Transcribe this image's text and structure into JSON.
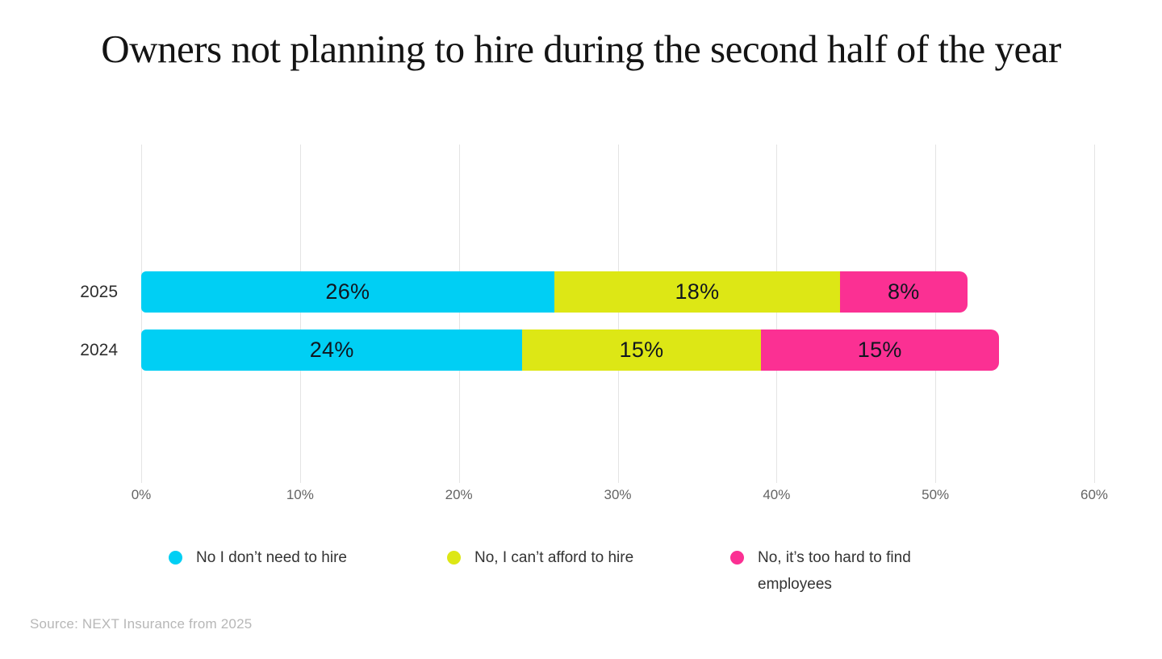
{
  "source_note": "Source: NEXT Insurance from 2025",
  "colors": {
    "title_text": "#141414",
    "bar_label_text": "#10161f",
    "axis_tick_text": "#646464",
    "category_label_text": "#2e2e2e",
    "legend_text": "#333333",
    "source_text": "#b7b7b7",
    "gridline": "#e4e4e4",
    "background": "#ffffff"
  },
  "chart_data": {
    "type": "bar",
    "orientation": "horizontal",
    "stacked": true,
    "title": "Owners not planning to hire during the second half of the year",
    "categories": [
      "2025",
      "2024"
    ],
    "series": [
      {
        "name": "No I don’t need to hire",
        "color": "#00CFF4",
        "values": [
          26,
          24
        ]
      },
      {
        "name": "No, I can’t afford to hire",
        "color": "#DDE715",
        "values": [
          18,
          15
        ]
      },
      {
        "name": "No, it’s too hard to find employees",
        "color": "#FB3093",
        "values": [
          8,
          15
        ]
      }
    ],
    "data_labels": [
      [
        "26%",
        "18%",
        "8%"
      ],
      [
        "24%",
        "15%",
        "15%"
      ]
    ],
    "x_ticks": [
      "0%",
      "10%",
      "20%",
      "30%",
      "40%",
      "50%",
      "60%"
    ],
    "xlim": [
      0,
      60
    ],
    "xlabel": "",
    "ylabel": "",
    "grid": "vertical-only",
    "legend_position": "bottom"
  }
}
